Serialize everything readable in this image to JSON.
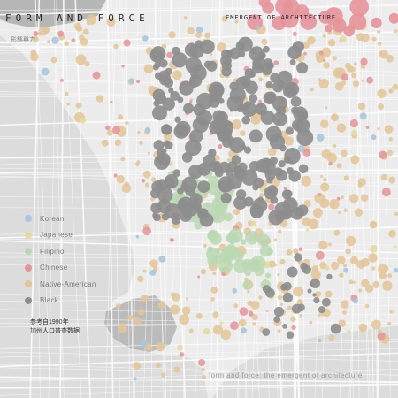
{
  "header": {
    "title": "FORM AND FORCE",
    "subtitle": "EMERGENT OF ARCHITECTURE",
    "chinese_label": "形態與力"
  },
  "legend": [
    {
      "label": "Korean",
      "color": "#a9c8dc"
    },
    {
      "label": "Japanese",
      "color": "#e2dca0"
    },
    {
      "label": "Filipino",
      "color": "#bad8b3"
    },
    {
      "label": "Chinese",
      "color": "#e5949a"
    },
    {
      "label": "Native-American",
      "color": "#e3c598"
    },
    {
      "label": "Black",
      "color": "#8d8d8d"
    }
  ],
  "source_note": {
    "line1": "参考自1990年",
    "line2": "加州人口普查数据"
  },
  "footer": {
    "caption": "form and force: the emergent of architecture"
  },
  "colors": {
    "land": "#ececec",
    "water": "#dcdcdc",
    "road": "#ffffff",
    "terrain": "#8a8a8a"
  }
}
